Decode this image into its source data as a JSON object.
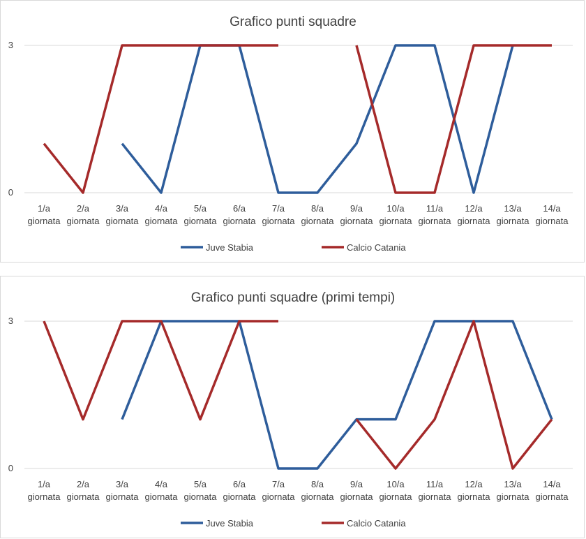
{
  "chart_data": [
    {
      "type": "line",
      "title": "Grafico punti squadre",
      "xlabel": "",
      "ylabel": "",
      "ylim": [
        0,
        3
      ],
      "yticks": [
        "0",
        "3"
      ],
      "categories": [
        "1/a giornata",
        "2/a giornata",
        "3/a giornata",
        "4/a giornata",
        "5/a giornata",
        "6/a giornata",
        "7/a giornata",
        "8/a giornata",
        "9/a giornata",
        "10/a giornata",
        "11/a giornata",
        "12/a giornata",
        "13/a giornata",
        "14/a giornata"
      ],
      "series": [
        {
          "name": "Juve Stabia",
          "color": "#2e5d9b",
          "values": [
            null,
            null,
            1,
            0,
            3,
            3,
            0,
            0,
            1,
            3,
            3,
            0,
            3,
            null
          ]
        },
        {
          "name": "Calcio Catania",
          "color": "#a52a2a",
          "values": [
            1,
            0,
            3,
            3,
            3,
            3,
            3,
            null,
            3,
            0,
            0,
            3,
            3,
            3
          ]
        }
      ],
      "grid": true,
      "legend": "bottom"
    },
    {
      "type": "line",
      "title": "Grafico punti squadre (primi tempi)",
      "xlabel": "",
      "ylabel": "",
      "ylim": [
        0,
        3
      ],
      "yticks": [
        "0",
        "3"
      ],
      "categories": [
        "1/a giornata",
        "2/a giornata",
        "3/a giornata",
        "4/a giornata",
        "5/a giornata",
        "6/a giornata",
        "7/a giornata",
        "8/a giornata",
        "9/a giornata",
        "10/a giornata",
        "11/a giornata",
        "12/a giornata",
        "13/a giornata",
        "14/a giornata"
      ],
      "series": [
        {
          "name": "Juve Stabia",
          "color": "#2e5d9b",
          "values": [
            null,
            null,
            1,
            3,
            3,
            3,
            0,
            0,
            1,
            1,
            3,
            3,
            3,
            1
          ]
        },
        {
          "name": "Calcio Catania",
          "color": "#a52a2a",
          "values": [
            3,
            1,
            3,
            3,
            1,
            3,
            3,
            null,
            1,
            0,
            1,
            3,
            0,
            1
          ]
        }
      ],
      "grid": true,
      "legend": "bottom"
    }
  ]
}
